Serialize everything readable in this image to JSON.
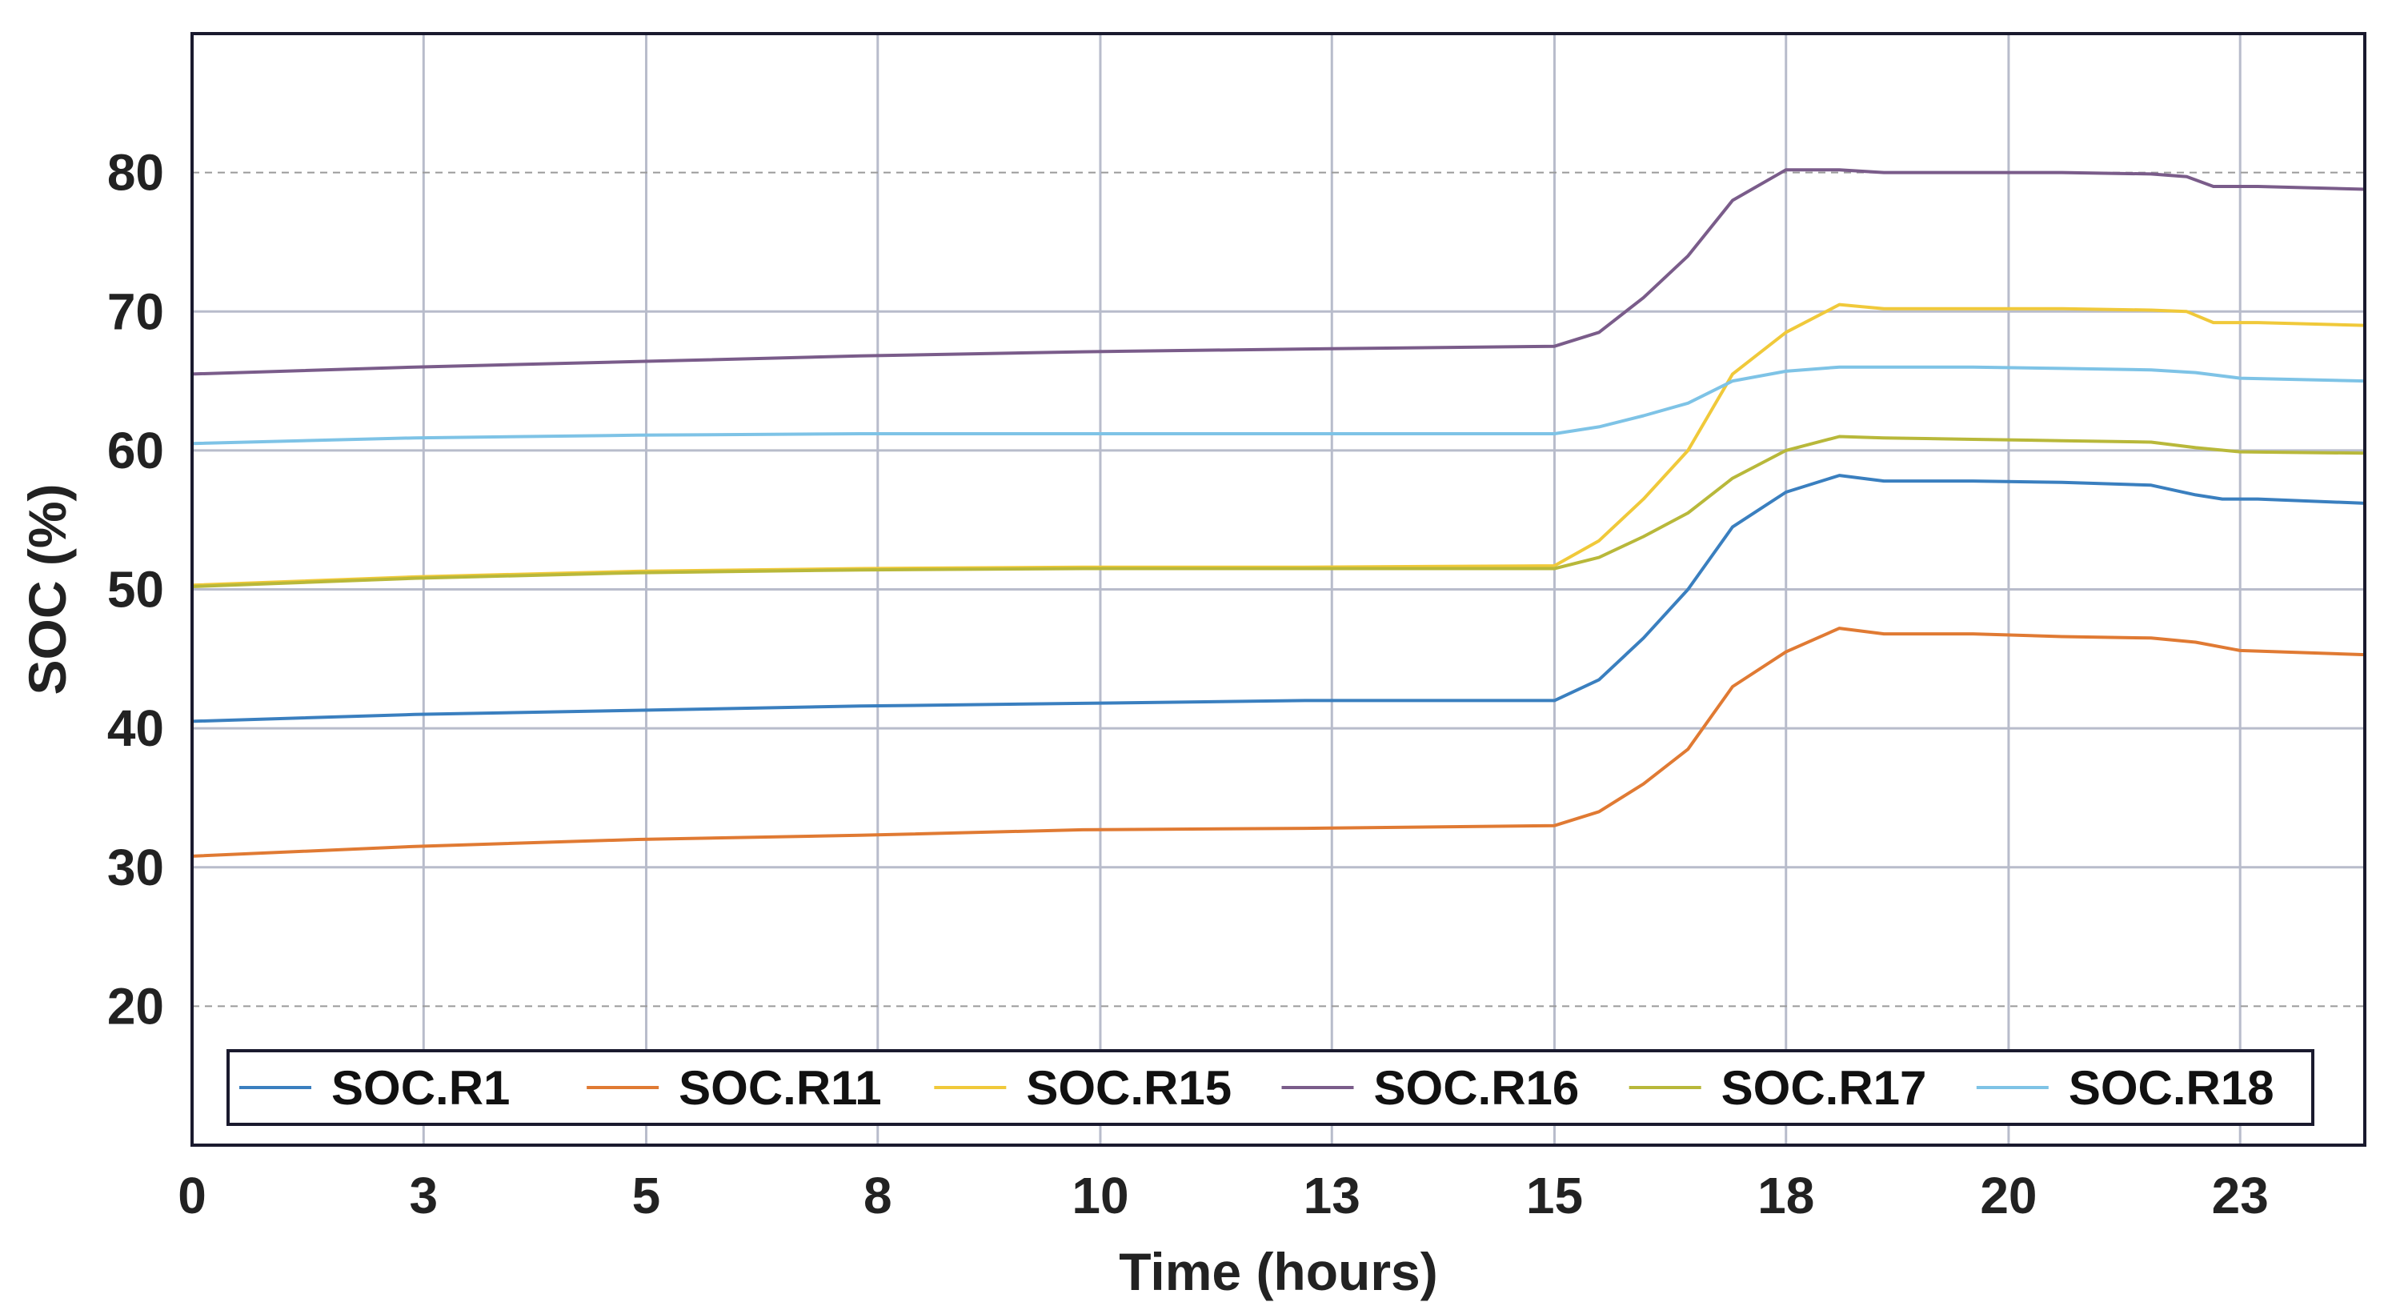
{
  "chart_data": {
    "type": "line",
    "title": "",
    "xlabel": "Time (hours)",
    "ylabel": "SOC (%)",
    "xlim": [
      0,
      24.4
    ],
    "ylim": [
      10,
      90
    ],
    "x_ticks": [
      0,
      2.6,
      5.1,
      7.7,
      10.2,
      12.8,
      15.3,
      17.9,
      20.4,
      23.0
    ],
    "x_tick_labels": [
      "0",
      "3",
      "5",
      "8",
      "10",
      "13",
      "15",
      "18",
      "20",
      "23"
    ],
    "y_ticks": [
      20,
      30,
      40,
      50,
      60,
      70,
      80
    ],
    "y_tick_labels": [
      "20",
      "30",
      "40",
      "50",
      "60",
      "70",
      "80"
    ],
    "grid": true,
    "legend_position": "bottom",
    "series": [
      {
        "name": "SOC.R1",
        "color": "#3a7fbf",
        "x": [
          0,
          2.5,
          5,
          7.5,
          10,
          12.5,
          15.3,
          15.8,
          16.3,
          16.8,
          17.3,
          17.9,
          18.5,
          19,
          20,
          21,
          22,
          22.5,
          22.8,
          23.2,
          24.4
        ],
        "y": [
          40.5,
          41,
          41.3,
          41.6,
          41.8,
          42,
          42,
          43.5,
          46.5,
          50,
          54.5,
          57,
          58.2,
          57.8,
          57.8,
          57.7,
          57.5,
          56.8,
          56.5,
          56.5,
          56.2
        ]
      },
      {
        "name": "SOC.R11",
        "color": "#e07a33",
        "x": [
          0,
          2.5,
          5,
          7.5,
          10,
          12.5,
          15.3,
          15.8,
          16.3,
          16.8,
          17.3,
          17.9,
          18.5,
          19,
          20,
          21,
          22,
          22.5,
          23,
          24.4
        ],
        "y": [
          30.8,
          31.5,
          32,
          32.3,
          32.7,
          32.8,
          33,
          34,
          36,
          38.5,
          43,
          45.5,
          47.2,
          46.8,
          46.8,
          46.6,
          46.5,
          46.2,
          45.6,
          45.3
        ]
      },
      {
        "name": "SOC.R15",
        "color": "#f0c93a",
        "x": [
          0,
          2.5,
          5,
          7.5,
          10,
          12.5,
          15.3,
          15.8,
          16.3,
          16.8,
          17.3,
          17.9,
          18.5,
          19,
          20,
          21,
          22,
          22.4,
          22.7,
          23.2,
          24.4
        ],
        "y": [
          50.3,
          50.9,
          51.3,
          51.5,
          51.6,
          51.6,
          51.7,
          53.5,
          56.5,
          60,
          65.5,
          68.5,
          70.5,
          70.2,
          70.2,
          70.2,
          70.1,
          70,
          69.2,
          69.2,
          69
        ]
      },
      {
        "name": "SOC.R16",
        "color": "#7a5c8a",
        "x": [
          0,
          2.5,
          5,
          7.5,
          10,
          12.5,
          15.3,
          15.8,
          16.3,
          16.8,
          17.3,
          17.9,
          18.5,
          19,
          20,
          21,
          22,
          22.4,
          22.7,
          23.2,
          24.4
        ],
        "y": [
          65.5,
          66,
          66.4,
          66.8,
          67.1,
          67.3,
          67.5,
          68.5,
          71,
          74,
          78,
          80.2,
          80.2,
          80,
          80,
          80,
          79.9,
          79.7,
          79,
          79,
          78.8
        ]
      },
      {
        "name": "SOC.R17",
        "color": "#b8b83a",
        "x": [
          0,
          2.5,
          5,
          7.5,
          10,
          12.5,
          15.3,
          15.8,
          16.3,
          16.8,
          17.3,
          17.9,
          18.5,
          19,
          20,
          21,
          22,
          22.5,
          23,
          24.4
        ],
        "y": [
          50.2,
          50.8,
          51.2,
          51.4,
          51.5,
          51.5,
          51.5,
          52.3,
          53.8,
          55.5,
          58,
          60,
          61,
          60.9,
          60.8,
          60.7,
          60.6,
          60.2,
          59.9,
          59.8
        ]
      },
      {
        "name": "SOC.R18",
        "color": "#7ec3e6",
        "x": [
          0,
          2.5,
          5,
          7.5,
          10,
          12.5,
          15.3,
          15.8,
          16.3,
          16.8,
          17.3,
          17.9,
          18.5,
          19,
          20,
          21,
          22,
          22.5,
          23,
          24.4
        ],
        "y": [
          60.5,
          60.9,
          61.1,
          61.2,
          61.2,
          61.2,
          61.2,
          61.7,
          62.5,
          63.4,
          65,
          65.7,
          66,
          66,
          66,
          65.9,
          65.8,
          65.6,
          65.2,
          65
        ]
      }
    ]
  }
}
